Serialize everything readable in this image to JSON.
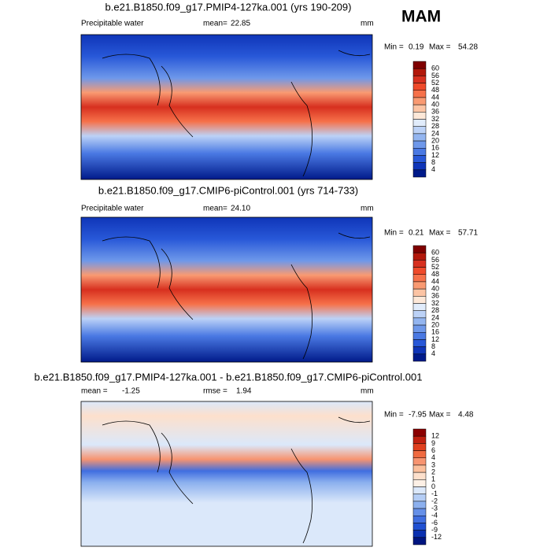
{
  "season": "MAM",
  "panels": [
    {
      "title": "b.e21.B1850.f09_g17.PMIP4-127ka.001 (yrs 190-209)",
      "variable": "Precipitable water",
      "stat1_label": "mean=",
      "stat1_value": "22.85",
      "stat2_label": null,
      "stat2_value": null,
      "units": "mm",
      "min_label": "Min =",
      "min_value": "0.19",
      "max_label": "Max =",
      "max_value": "54.28",
      "colorbar_labels": [
        "60",
        "56",
        "52",
        "48",
        "44",
        "40",
        "36",
        "32",
        "28",
        "24",
        "20",
        "16",
        "12",
        "8",
        "4"
      ]
    },
    {
      "title": "b.e21.B1850.f09_g17.CMIP6-piControl.001 (yrs 714-733)",
      "variable": "Precipitable water",
      "stat1_label": "mean=",
      "stat1_value": "24.10",
      "stat2_label": null,
      "stat2_value": null,
      "units": "mm",
      "min_label": "Min =",
      "min_value": "0.21",
      "max_label": "Max =",
      "max_value": "57.71",
      "colorbar_labels": [
        "60",
        "56",
        "52",
        "48",
        "44",
        "40",
        "36",
        "32",
        "28",
        "24",
        "20",
        "16",
        "12",
        "8",
        "4"
      ]
    },
    {
      "title": "b.e21.B1850.f09_g17.PMIP4-127ka.001 - b.e21.B1850.f09_g17.CMIP6-piControl.001",
      "variable": null,
      "stat1_label": "mean =",
      "stat1_value": "-1.25",
      "stat2_label": "rmse =",
      "stat2_value": "1.94",
      "units": "mm",
      "min_label": "Min =",
      "min_value": "-7.95",
      "max_label": "Max =",
      "max_value": "4.48",
      "colorbar_labels": [
        "12",
        "9",
        "6",
        "4",
        "3",
        "2",
        "1",
        "0",
        "-1",
        "-2",
        "-3",
        "-4",
        "-6",
        "-9",
        "-12"
      ]
    }
  ],
  "colormap_field": [
    "#7f0000",
    "#b2180b",
    "#d7301f",
    "#ef4a2a",
    "#f6714a",
    "#f99a72",
    "#fcc4a4",
    "#fde8d8",
    "#e1ecfb",
    "#bcd2f7",
    "#93b5f0",
    "#6e98ea",
    "#4a79e3",
    "#2858d8",
    "#0f35b8",
    "#001a8a"
  ],
  "colormap_diff": [
    "#8b0000",
    "#c0200f",
    "#e0401e",
    "#f06a40",
    "#f79470",
    "#fbbf9c",
    "#fde0cc",
    "#fdf0e6",
    "#dbe8fa",
    "#b4cdf5",
    "#8cb0ee",
    "#6690e8",
    "#406ee0",
    "#2050d2",
    "#0a30b0",
    "#001580"
  ]
}
